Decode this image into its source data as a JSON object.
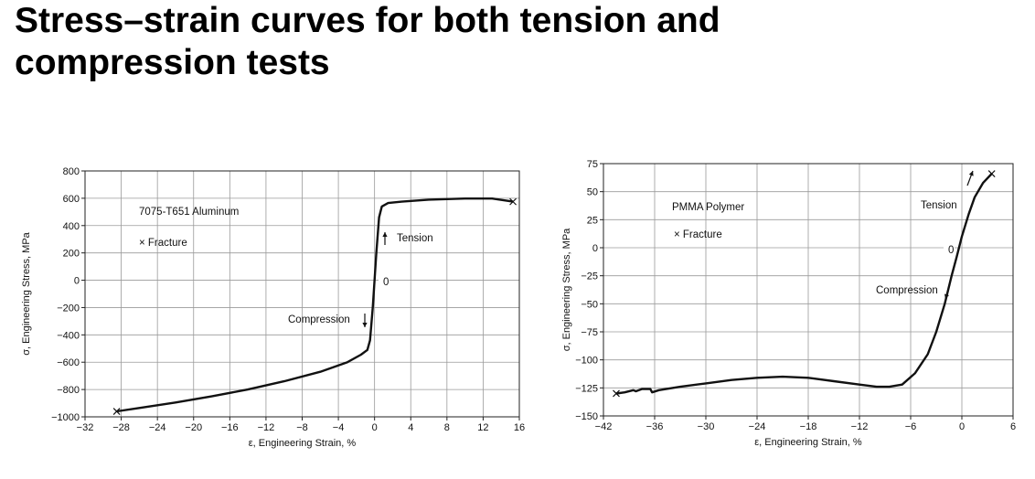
{
  "slide": {
    "title_line1": "Stress–strain curves for both tension and",
    "title_line2": "compression tests"
  },
  "chart_data": [
    {
      "type": "line",
      "xlabel": "ε, Engineering Strain, %",
      "ylabel": "σ, Engineering Stress, MPa",
      "xlim": [
        -32,
        16
      ],
      "ylim": [
        -1000,
        800
      ],
      "xticks": [
        -32,
        -28,
        -24,
        -20,
        -16,
        -12,
        -8,
        -4,
        0,
        4,
        8,
        12,
        16
      ],
      "yticks": [
        -1000,
        -800,
        -600,
        -400,
        -200,
        0,
        200,
        400,
        600,
        800
      ],
      "grid": true,
      "annotations": {
        "material": "7075-T651 Aluminum",
        "fracture_legend": "× Fracture",
        "tension": "Tension",
        "compression": "Compression",
        "zero": "0"
      },
      "series": [
        {
          "x": [
            -28.5,
            -26,
            -22,
            -18,
            -14,
            -10,
            -6,
            -3,
            -1.5,
            -0.8,
            -0.5,
            -0.2,
            0.2,
            0.5,
            0.8,
            1.5,
            3,
            6,
            10,
            13,
            15.3
          ],
          "y": [
            -960,
            -935,
            -895,
            -850,
            -800,
            -740,
            -670,
            -600,
            -545,
            -510,
            -440,
            -200,
            200,
            460,
            540,
            565,
            575,
            590,
            598,
            598,
            575
          ]
        }
      ],
      "fracture_points": [
        [
          -28.5,
          -960
        ],
        [
          15.3,
          575
        ]
      ]
    },
    {
      "type": "line",
      "xlabel": "ε, Engineering Strain, %",
      "ylabel": "σ, Engineering Stress, MPa",
      "xlim": [
        -42,
        6
      ],
      "ylim": [
        -150,
        75
      ],
      "xticks": [
        -42,
        -36,
        -30,
        -24,
        -18,
        -12,
        -6,
        0,
        6
      ],
      "xtick_labels": [
        "−42",
        "−36",
        "−30",
        "−24",
        "−18",
        "−12",
        "−6",
        "0",
        "6"
      ],
      "yticks": [
        -150,
        -125,
        -100,
        -75,
        -50,
        -25,
        0,
        25,
        50,
        75
      ],
      "grid": true,
      "annotations": {
        "material": "PMMA Polymer",
        "fracture_legend": "× Fracture",
        "tension": "Tension",
        "compression": "Compression",
        "zero": "0"
      },
      "series": [
        {
          "x": [
            -40.5,
            -39.5,
            -38.5,
            -38.2,
            -37.5,
            -36.5,
            -36.3,
            -35.5,
            -33,
            -30,
            -27,
            -24,
            -21,
            -18,
            -15,
            -12,
            -10,
            -8.5,
            -7,
            -5.5,
            -4,
            -3,
            -2,
            -1.2,
            -0.6,
            0,
            0.8,
            1.5,
            2.5,
            3.5
          ],
          "y": [
            -130,
            -129,
            -127,
            -128,
            -126,
            -126,
            -129,
            -127,
            -124,
            -121,
            -118,
            -116,
            -115,
            -116,
            -119,
            -122,
            -124,
            -124,
            -122,
            -112,
            -95,
            -75,
            -50,
            -25,
            -8,
            10,
            30,
            45,
            58,
            66
          ]
        }
      ],
      "fracture_points": [
        [
          -40.5,
          -130
        ],
        [
          3.5,
          66
        ]
      ]
    }
  ]
}
